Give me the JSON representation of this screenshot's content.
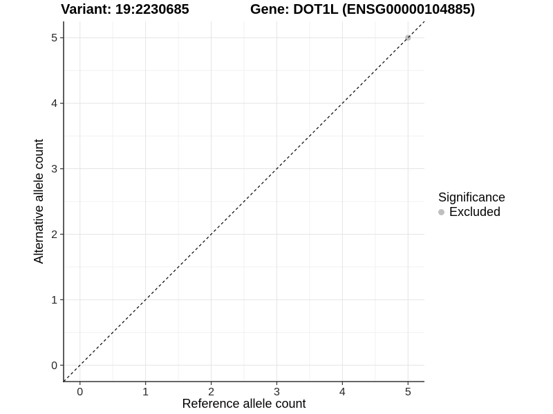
{
  "chart_data": {
    "type": "scatter",
    "titles": {
      "left": "Variant: 19:2230685",
      "right": "Gene: DOT1L (ENSG00000104885)"
    },
    "xlabel": "Reference allele count",
    "ylabel": "Alternative allele count",
    "x_ticks": [
      0,
      1,
      2,
      3,
      4,
      5
    ],
    "y_ticks": [
      0,
      1,
      2,
      3,
      4,
      5
    ],
    "xlim": [
      -0.25,
      5.25
    ],
    "ylim": [
      -0.25,
      5.25
    ],
    "grid": {
      "major": true,
      "minor": true
    },
    "reference_line": {
      "type": "identity y=x",
      "style": "dashed",
      "from": [
        -0.25,
        -0.25
      ],
      "to": [
        5.25,
        5.25
      ],
      "color": "#000000"
    },
    "series": [
      {
        "name": "Excluded",
        "color": "#bfbfbf",
        "points": [
          [
            5,
            5
          ]
        ]
      }
    ],
    "legend": {
      "title": "Significance",
      "position": "right",
      "items": [
        {
          "label": "Excluded",
          "color": "#bfbfbf",
          "marker": "circle"
        }
      ]
    },
    "colors": {
      "grid_major": "#e4e4e4",
      "grid_minor": "#f1f1f1",
      "axis_line": "#333333",
      "tick_mark": "#333333",
      "tick_label": "#262626"
    }
  }
}
